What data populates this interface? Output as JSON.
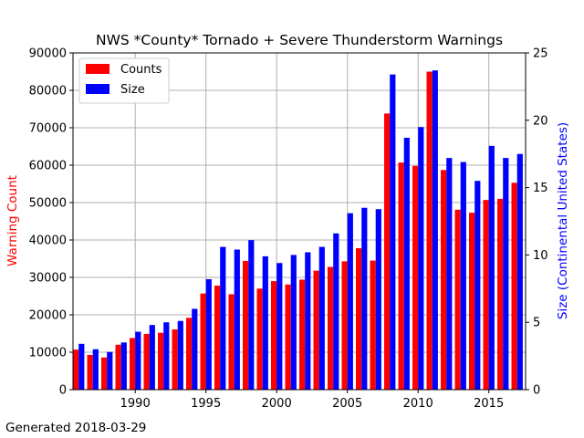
{
  "chart_data": {
    "type": "bar",
    "title": "NWS *County* Tornado + Severe Thunderstorm Warnings",
    "xlabel": "",
    "x_ticks": [
      1990,
      1995,
      2000,
      2005,
      2010,
      2015
    ],
    "xlim": [
      1985.6,
      2017.6
    ],
    "left_axis": {
      "label": "Warning Count",
      "color": "#ff0000",
      "ylim": [
        0,
        90000
      ],
      "ticks": [
        0,
        10000,
        20000,
        30000,
        40000,
        50000,
        60000,
        70000,
        80000,
        90000
      ]
    },
    "right_axis": {
      "label": "Size (Continental United States)",
      "color": "#0000ff",
      "ylim": [
        0,
        25
      ],
      "ticks": [
        0,
        5,
        10,
        15,
        20,
        25
      ]
    },
    "grid": true,
    "legend_position": "top-left",
    "categories": [
      1986,
      1987,
      1988,
      1989,
      1990,
      1991,
      1992,
      1993,
      1994,
      1995,
      1996,
      1997,
      1998,
      1999,
      2000,
      2001,
      2002,
      2003,
      2004,
      2005,
      2006,
      2007,
      2008,
      2009,
      2010,
      2011,
      2012,
      2013,
      2014,
      2015,
      2016,
      2017
    ],
    "series": [
      {
        "name": "Counts",
        "axis": "left",
        "color": "#ff0000",
        "values": [
          10700,
          9300,
          8600,
          12000,
          13800,
          14900,
          15200,
          16100,
          19200,
          25700,
          27800,
          25500,
          34400,
          27000,
          29000,
          28100,
          29400,
          31800,
          32800,
          34300,
          37800,
          34500,
          73800,
          60700,
          59800,
          85000,
          58700,
          48100,
          47300,
          50700,
          51000,
          55300
        ]
      },
      {
        "name": "Size",
        "axis": "right",
        "color": "#0000ff",
        "values": [
          3.4,
          3.0,
          2.8,
          3.5,
          4.3,
          4.8,
          5.0,
          5.1,
          6.0,
          8.2,
          10.6,
          10.4,
          11.1,
          9.9,
          9.4,
          10.0,
          10.2,
          10.6,
          11.6,
          13.1,
          13.5,
          13.4,
          23.4,
          18.7,
          19.5,
          23.7,
          17.2,
          16.9,
          15.5,
          18.1,
          17.2,
          17.5
        ]
      }
    ]
  },
  "footer": {
    "generated": "Generated 2018-03-29"
  }
}
